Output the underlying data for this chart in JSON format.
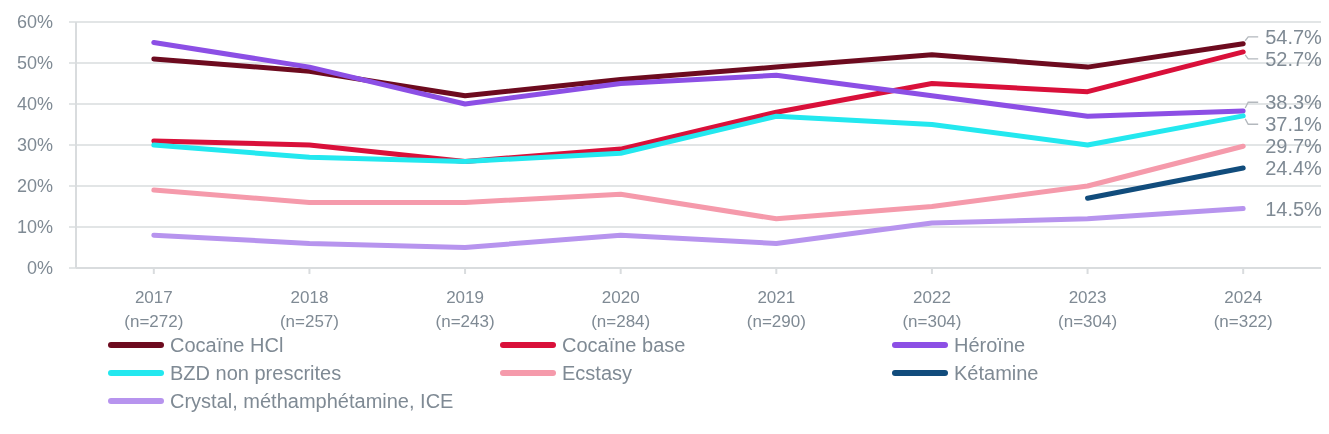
{
  "chart_data": {
    "type": "line",
    "categories": [
      "2017 (n=272)",
      "2018 (n=257)",
      "2019 (n=243)",
      "2020 (n=284)",
      "2021 (n=290)",
      "2022 (n=304)",
      "2023 (n=304)",
      "2024 (n=322)"
    ],
    "ylim": [
      0,
      60
    ],
    "yticks": [
      {
        "value": 0,
        "label": "0%"
      },
      {
        "value": 10,
        "label": "10%"
      },
      {
        "value": 20,
        "label": "20%"
      },
      {
        "value": 30,
        "label": "30%"
      },
      {
        "value": 40,
        "label": "40%"
      },
      {
        "value": 50,
        "label": "50%"
      },
      {
        "value": 60,
        "label": "60%"
      }
    ],
    "grid": "y",
    "legend": "bottom",
    "line_style": "solid",
    "series": [
      {
        "name": "Cocaïne HCl",
        "color": "#6d0b1f",
        "values": [
          51,
          48,
          42,
          46,
          49,
          52,
          49,
          54.7
        ],
        "value_labels": [
          null,
          null,
          null,
          null,
          null,
          null,
          null,
          "54.7%"
        ]
      },
      {
        "name": "Cocaïne base",
        "color": "#d9103a",
        "values": [
          31,
          30,
          26,
          29,
          38,
          45,
          43,
          52.7
        ],
        "value_labels": [
          null,
          null,
          null,
          null,
          null,
          null,
          null,
          "52.7%"
        ]
      },
      {
        "name": "Héroïne",
        "color": "#8c4fe5",
        "values": [
          55,
          49,
          40,
          45,
          47,
          42,
          37,
          38.3
        ],
        "value_labels": [
          null,
          null,
          null,
          null,
          null,
          null,
          null,
          "38.3%"
        ]
      },
      {
        "name": "BZD non prescrites",
        "color": "#23e8ef",
        "values": [
          30,
          27,
          26,
          28,
          37,
          35,
          30,
          37.1
        ],
        "value_labels": [
          null,
          null,
          null,
          null,
          null,
          null,
          null,
          "37.1%"
        ]
      },
      {
        "name": "Ecstasy",
        "color": "#f59aab",
        "values": [
          19,
          16,
          16,
          18,
          12,
          15,
          20,
          29.7
        ],
        "value_labels": [
          null,
          null,
          null,
          null,
          null,
          null,
          null,
          "29.7%"
        ]
      },
      {
        "name": "Kétamine",
        "color": "#114c7c",
        "values": [
          null,
          null,
          null,
          null,
          null,
          null,
          17,
          24.4
        ],
        "value_labels": [
          null,
          null,
          null,
          null,
          null,
          null,
          null,
          "24.4%"
        ]
      },
      {
        "name": "Crystal, méthamphétamine, ICE",
        "color": "#b794ee",
        "values": [
          8,
          6,
          5,
          8,
          6,
          11,
          12,
          14.5
        ],
        "value_labels": [
          null,
          null,
          null,
          null,
          null,
          null,
          null,
          "14.5%"
        ]
      }
    ]
  }
}
